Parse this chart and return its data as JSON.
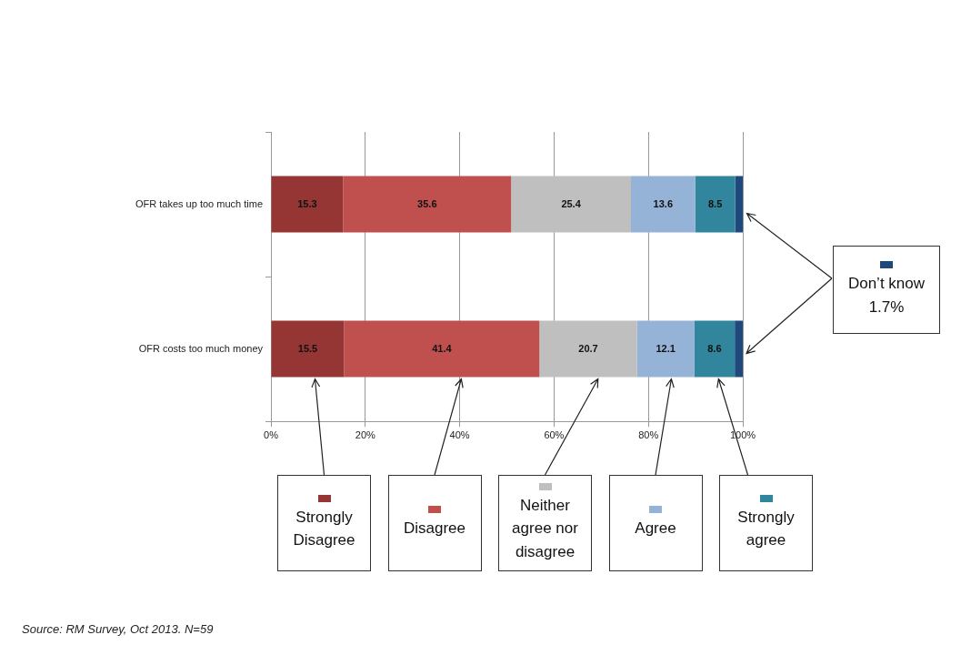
{
  "chart_data": {
    "type": "bar",
    "orientation": "horizontal",
    "stacked": true,
    "categories": [
      "OFR takes up too much time",
      "OFR costs too much money"
    ],
    "series": [
      {
        "name": "Strongly Disagree",
        "color": "#963634",
        "values": [
          15.3,
          15.5
        ],
        "value_labels": [
          "15.3",
          "15.5"
        ]
      },
      {
        "name": "Disagree",
        "color": "#c0504d",
        "values": [
          35.6,
          41.4
        ],
        "value_labels": [
          "35.6",
          "41.4"
        ]
      },
      {
        "name": "Neither agree nor disagree",
        "color": "#bfbfbf",
        "values": [
          25.4,
          20.7
        ],
        "value_labels": [
          "25.4",
          "20.7"
        ]
      },
      {
        "name": "Agree",
        "color": "#95b3d7",
        "values": [
          13.6,
          12.1
        ],
        "value_labels": [
          "13.6",
          "12.1"
        ]
      },
      {
        "name": "Strongly agree",
        "color": "#31859c",
        "values": [
          8.5,
          8.6
        ],
        "value_labels": [
          "8.5",
          "8.6"
        ]
      },
      {
        "name": "Don’t know",
        "color": "#1f497d",
        "values": [
          1.7,
          1.7
        ],
        "value_labels": [
          null,
          null
        ]
      }
    ],
    "xlim": [
      0,
      100
    ],
    "xticks": [
      {
        "value": 0,
        "label": "0%"
      },
      {
        "value": 20,
        "label": "20%"
      },
      {
        "value": 40,
        "label": "40%"
      },
      {
        "value": 60,
        "label": "60%"
      },
      {
        "value": 80,
        "label": "80%"
      },
      {
        "value": 100,
        "label": "100%"
      }
    ],
    "grid": "x",
    "legend": "bottom",
    "annotations": [
      "1.7%",
      "Source: RM Survey, Oct 2013.  N=59"
    ]
  }
}
